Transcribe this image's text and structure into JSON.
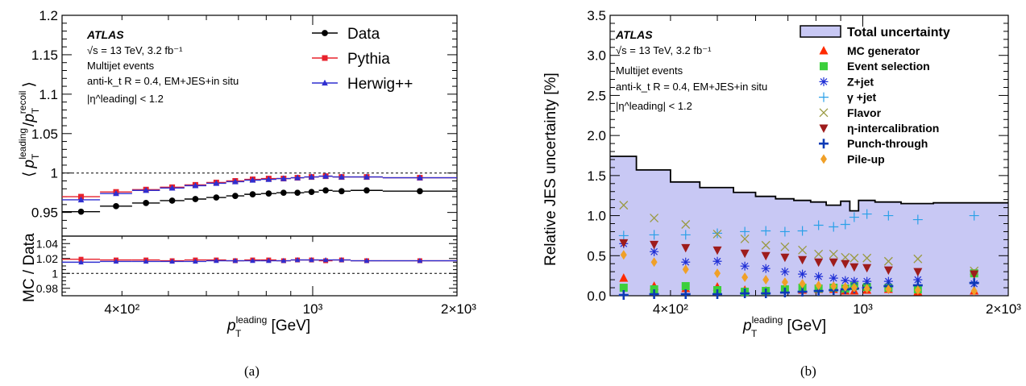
{
  "captions": {
    "a": "(a)",
    "b": "(b)"
  },
  "chart_data": [
    {
      "type": "scatter",
      "panel": "a",
      "xscale": "log",
      "xlim": [
        300,
        2000
      ],
      "xticks": [
        {
          "value": 400,
          "label": "4×10²"
        },
        {
          "value": 1000,
          "label": "10³"
        },
        {
          "value": 2000,
          "label": "2×10³"
        }
      ],
      "xlabel": "p_T^leading [GeV]",
      "xlabel_parts": {
        "main": "p",
        "sub": "T",
        "sup": "leading",
        "unit": " [GeV]"
      },
      "ylabel": "⟨ p_T^leading / p_T^recoil ⟩",
      "ylabel_parts": {
        "lt": "⟨",
        "p": "p",
        "sub": "T",
        "sup1": "leading",
        "slash": "/",
        "sup2": "recoil",
        "gt": "⟩"
      },
      "ylim": [
        0.92,
        1.2
      ],
      "yticks": [
        "0.95",
        "1",
        "1.05",
        "1.1",
        "1.15",
        "1.2"
      ],
      "reference_line": 1,
      "annotations": {
        "atlas": "ATLAS",
        "lines": [
          "√s = 13 TeV, 3.2 fb⁻¹",
          "Multijet events",
          "anti-k_t R = 0.4, EM+JES+in situ",
          "|η^leading| < 1.2"
        ]
      },
      "legend_position": "top-right",
      "bin_edges": [
        300,
        360,
        420,
        480,
        540,
        600,
        660,
        720,
        780,
        840,
        900,
        960,
        1030,
        1100,
        1200,
        1400,
        2000
      ],
      "series": [
        {
          "name": "Data",
          "color": "#000000",
          "marker": "circle",
          "values": [
            0.951,
            0.958,
            0.962,
            0.965,
            0.967,
            0.969,
            0.971,
            0.973,
            0.974,
            0.975,
            0.975,
            0.976,
            0.978,
            0.977,
            0.978,
            0.977
          ]
        },
        {
          "name": "Pythia",
          "color": "#e8222c",
          "marker": "square",
          "values": [
            0.97,
            0.976,
            0.979,
            0.982,
            0.985,
            0.988,
            0.99,
            0.992,
            0.993,
            0.993,
            0.994,
            0.995,
            0.996,
            0.995,
            0.995,
            0.994
          ]
        },
        {
          "name": "Herwig++",
          "color": "#2f2fd0",
          "marker": "triangle",
          "values": [
            0.966,
            0.974,
            0.978,
            0.981,
            0.984,
            0.987,
            0.989,
            0.991,
            0.992,
            0.993,
            0.994,
            0.995,
            0.996,
            0.995,
            0.995,
            0.994
          ]
        }
      ],
      "ratio_panel": {
        "ylabel": "MC / Data",
        "ylim": [
          0.97,
          1.05
        ],
        "yticks": [
          "0.98",
          "1",
          "1.02",
          "1.04"
        ],
        "reference_line": 1,
        "series": [
          {
            "name": "Pythia",
            "values": [
              1.019,
              1.018,
              1.018,
              1.017,
              1.018,
              1.018,
              1.017,
              1.018,
              1.018,
              1.017,
              1.018,
              1.018,
              1.017,
              1.018,
              1.017,
              1.017
            ]
          },
          {
            "name": "Herwig++",
            "values": [
              1.015,
              1.016,
              1.016,
              1.016,
              1.016,
              1.017,
              1.017,
              1.017,
              1.017,
              1.017,
              1.018,
              1.018,
              1.018,
              1.018,
              1.017,
              1.017
            ]
          }
        ]
      }
    },
    {
      "type": "scatter",
      "panel": "b",
      "xscale": "log",
      "xlim": [
        300,
        2000
      ],
      "xticks": [
        {
          "value": 400,
          "label": "4×10²"
        },
        {
          "value": 1000,
          "label": "10³"
        },
        {
          "value": 2000,
          "label": "2×10³"
        }
      ],
      "xlabel": "p_T^leading [GeV]",
      "xlabel_parts": {
        "main": "p",
        "sub": "T",
        "sup": "leading",
        "unit": " [GeV]"
      },
      "ylabel": "Relative JES uncertainty [%]",
      "ylim": [
        0,
        3.5
      ],
      "yticks": [
        "0.0",
        "0.5",
        "1.0",
        "1.5",
        "2.0",
        "2.5",
        "3.0",
        "3.5"
      ],
      "annotations": {
        "atlas": "ATLAS",
        "lines": [
          "√s = 13 TeV, 3.2 fb⁻¹",
          "Multijet events",
          "anti-k_t R = 0.4, EM+JES+in situ",
          "|η^leading| < 1.2"
        ]
      },
      "legend_position": "top-right",
      "total_uncertainty": {
        "name": "Total uncertainty",
        "fill": "#c8c8f4",
        "bin_edges": [
          300,
          340,
          400,
          460,
          540,
          600,
          660,
          720,
          780,
          840,
          900,
          940,
          980,
          1060,
          1200,
          1400,
          2000
        ],
        "values": [
          1.74,
          1.57,
          1.42,
          1.35,
          1.29,
          1.24,
          1.21,
          1.19,
          1.17,
          1.13,
          1.18,
          1.06,
          1.19,
          1.17,
          1.15,
          1.16
        ]
      },
      "points_x": [
        320,
        370,
        430,
        500,
        570,
        630,
        690,
        750,
        810,
        870,
        920,
        960,
        1020,
        1130,
        1300,
        1700
      ],
      "series": [
        {
          "name": "MC generator",
          "color": "#ff2a00",
          "marker": "triangle",
          "values": [
            0.22,
            0.12,
            0.09,
            0.11,
            0.07,
            0.06,
            0.09,
            0.07,
            0.08,
            0.08,
            0.06,
            0.06,
            0.07,
            0.08,
            0.05,
            0.06
          ]
        },
        {
          "name": "Event selection",
          "color": "#3ccf3c",
          "marker": "square",
          "values": [
            0.1,
            0.08,
            0.12,
            0.07,
            0.05,
            0.06,
            0.08,
            0.1,
            0.09,
            0.1,
            0.09,
            0.12,
            0.11,
            0.1,
            0.08,
            0.28
          ]
        },
        {
          "name": "Z+jet",
          "color": "#1f2fd6",
          "marker": "asterisk",
          "values": [
            0.65,
            0.55,
            0.42,
            0.43,
            0.37,
            0.34,
            0.3,
            0.27,
            0.24,
            0.22,
            0.19,
            0.18,
            0.18,
            0.18,
            0.2,
            0.15
          ]
        },
        {
          "name": "γ +jet",
          "color": "#2aa0e8",
          "marker": "plus",
          "values": [
            0.75,
            0.76,
            0.76,
            0.78,
            0.8,
            0.81,
            0.8,
            0.81,
            0.88,
            0.86,
            0.89,
            0.98,
            1.02,
            1.0,
            0.95,
            1.0
          ]
        },
        {
          "name": "Flavor",
          "color": "#9a9a42",
          "marker": "cross",
          "values": [
            1.13,
            0.97,
            0.89,
            0.77,
            0.71,
            0.63,
            0.61,
            0.57,
            0.52,
            0.52,
            0.48,
            0.47,
            0.47,
            0.43,
            0.46,
            0.31
          ]
        },
        {
          "name": "η-intercalibration",
          "color": "#9e1c1c",
          "marker": "triangle-down",
          "values": [
            0.66,
            0.64,
            0.6,
            0.57,
            0.53,
            0.5,
            0.48,
            0.45,
            0.42,
            0.42,
            0.4,
            0.36,
            0.35,
            0.32,
            0.3,
            0.27
          ]
        },
        {
          "name": "Punch-through",
          "color": "#0d3ab6",
          "marker": "plus-bold",
          "values": [
            0.01,
            0.02,
            0.02,
            0.02,
            0.03,
            0.03,
            0.04,
            0.05,
            0.06,
            0.07,
            0.08,
            0.09,
            0.1,
            0.12,
            0.13,
            0.16
          ]
        },
        {
          "name": "Pile-up",
          "color": "#f0a028",
          "marker": "diamond",
          "values": [
            0.51,
            0.42,
            0.33,
            0.28,
            0.23,
            0.2,
            0.17,
            0.15,
            0.13,
            0.12,
            0.11,
            0.1,
            0.09,
            0.08,
            0.07,
            0.06
          ]
        }
      ]
    }
  ]
}
